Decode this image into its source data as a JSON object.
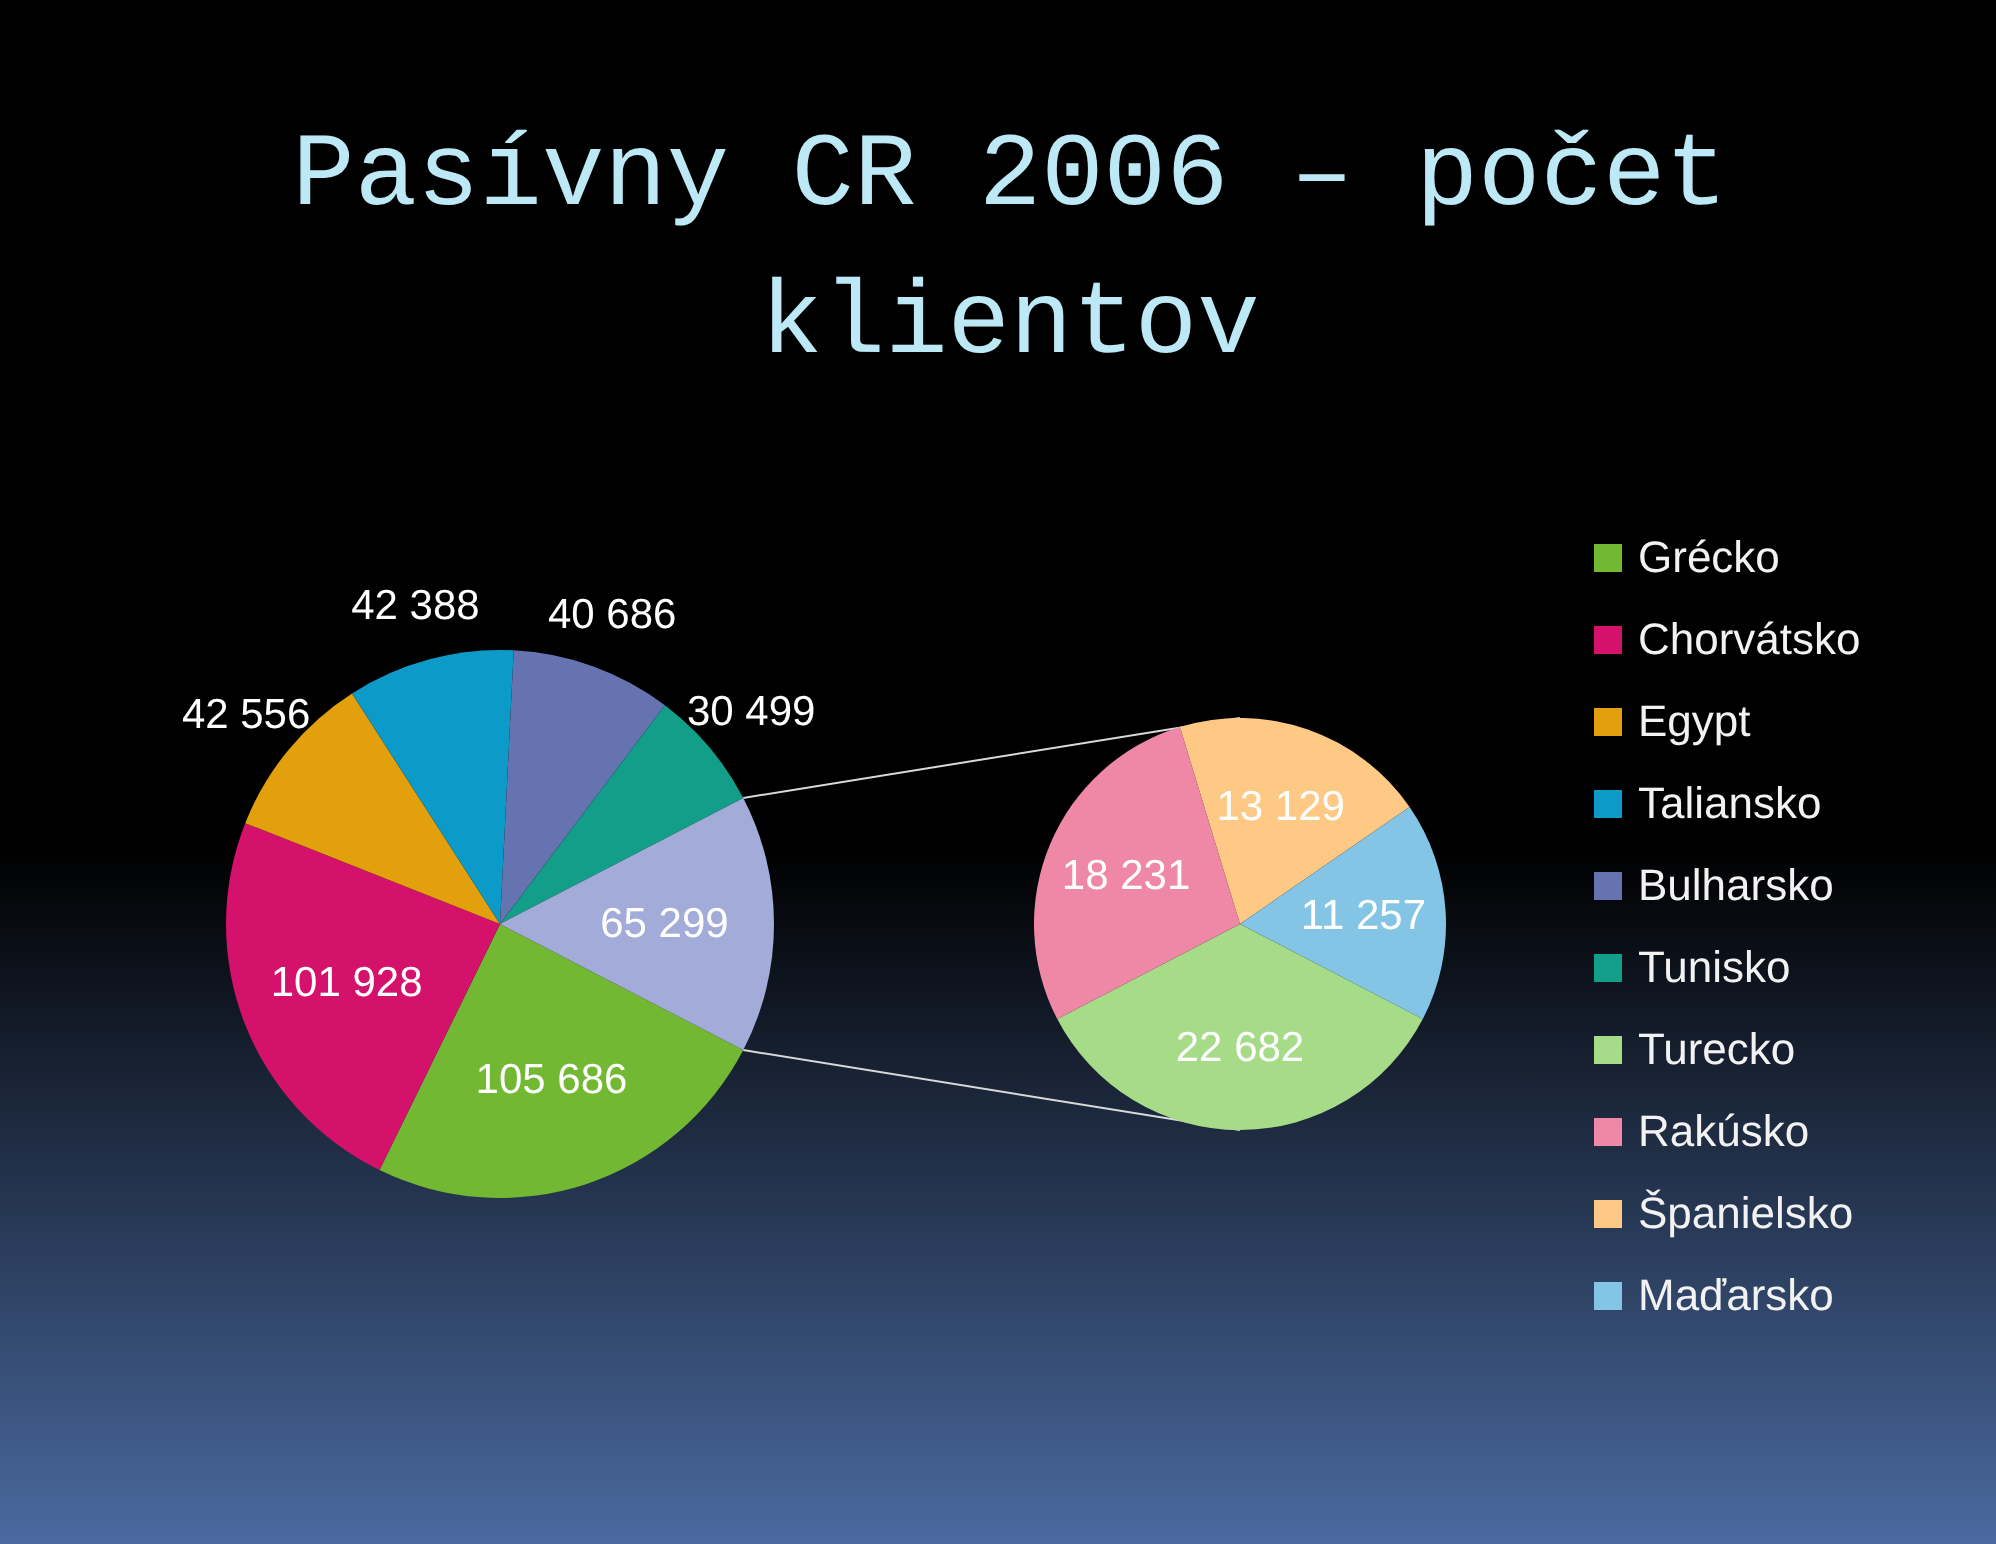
{
  "chart_data": [
    {
      "type": "pie",
      "title": "Pasívny CR 2006 – počet klientov",
      "categories": [
        "Grécko",
        "Chorvátsko",
        "Egypt",
        "Taliansko",
        "Bulharsko",
        "Tunisko",
        null
      ],
      "values": [
        105686,
        101928,
        42556,
        42388,
        40686,
        30499,
        65299
      ],
      "colors": [
        "#72b833",
        "#d4126c",
        "#e2a00c",
        "#0c9ac9",
        "#6574b0",
        "#139e8a",
        "#a3abd9"
      ],
      "value_labels": [
        "105 686",
        "101 928",
        "42 556",
        "42 388",
        "40 686",
        "30 499",
        "65 299"
      ],
      "legend": "right"
    },
    {
      "type": "pie",
      "categories": [
        "Turecko",
        "Rakúsko",
        "Španielsko",
        "Maďarsko"
      ],
      "values": [
        22682,
        18231,
        13129,
        11257
      ],
      "colors": [
        "#a6dc88",
        "#ef88a6",
        "#fdc985",
        "#84c4e4"
      ],
      "value_labels": [
        "22 682",
        "18 231",
        "13 129",
        "11 257"
      ],
      "legend": "right"
    }
  ]
}
